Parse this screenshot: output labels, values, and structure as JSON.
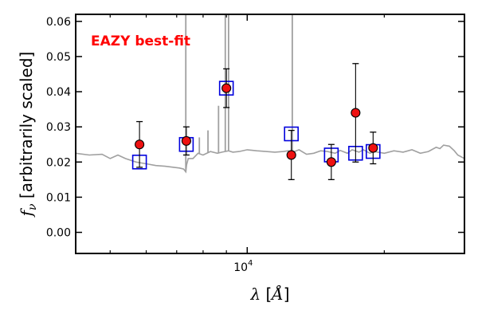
{
  "chart_data": {
    "type": "scatter",
    "xscale": "log",
    "xlim": [
      4200,
      30000
    ],
    "ylim": [
      -0.006,
      0.062
    ],
    "grid": false,
    "legend": "none",
    "annotation": "EAZY best-fit",
    "ylabel_parts": {
      "symbol": "f",
      "sub": "ν",
      "text": " [arbitrarily scaled]"
    },
    "xlabel_parts": {
      "symbol": "λ",
      "open": " [",
      "unit": "Å",
      "close": "]"
    },
    "yticks": [
      {
        "value": 0.0,
        "label": "0.00"
      },
      {
        "value": 0.01,
        "label": "0.01"
      },
      {
        "value": 0.02,
        "label": "0.02"
      },
      {
        "value": 0.03,
        "label": "0.03"
      },
      {
        "value": 0.04,
        "label": "0.04"
      },
      {
        "value": 0.05,
        "label": "0.05"
      },
      {
        "value": 0.06,
        "label": "0.06"
      }
    ],
    "xtick_major": {
      "value": 10000,
      "base": "10",
      "exp": "4"
    },
    "xtick_minor": [
      5000,
      6000,
      7000,
      8000,
      9000,
      20000,
      30000
    ],
    "observed": [
      {
        "x": 5800,
        "y": 0.025,
        "yerr_low": 0.0065,
        "yerr_high": 0.0065
      },
      {
        "x": 7350,
        "y": 0.026,
        "yerr_low": 0.004,
        "yerr_high": 0.004
      },
      {
        "x": 9000,
        "y": 0.041,
        "yerr_low": 0.0055,
        "yerr_high": 0.0055
      },
      {
        "x": 12500,
        "y": 0.022,
        "yerr_low": 0.007,
        "yerr_high": 0.007
      },
      {
        "x": 15300,
        "y": 0.02,
        "yerr_low": 0.005,
        "yerr_high": 0.005
      },
      {
        "x": 17300,
        "y": 0.034,
        "yerr_low": 0.014,
        "yerr_high": 0.014
      },
      {
        "x": 18900,
        "y": 0.024,
        "yerr_low": 0.0045,
        "yerr_high": 0.0045
      }
    ],
    "model_photometry": [
      {
        "x": 5800,
        "y": 0.02
      },
      {
        "x": 7350,
        "y": 0.025
      },
      {
        "x": 9000,
        "y": 0.041
      },
      {
        "x": 12500,
        "y": 0.028
      },
      {
        "x": 15300,
        "y": 0.022
      },
      {
        "x": 17300,
        "y": 0.0225
      },
      {
        "x": 18900,
        "y": 0.023
      }
    ],
    "sed": {
      "x": [
        4200,
        4500,
        4800,
        5000,
        5200,
        5400,
        5700,
        6000,
        6300,
        6600,
        6900,
        7100,
        7250,
        7300,
        7330,
        7360,
        7420,
        7600,
        7800,
        8000,
        8300,
        8600,
        8800,
        9100,
        9300,
        9600,
        10000,
        10500,
        11000,
        11500,
        12000,
        12300,
        12600,
        13000,
        13500,
        14000,
        14500,
        15000,
        15600,
        16000,
        16600,
        17000,
        17600,
        18000,
        18600,
        19000,
        20000,
        21000,
        22000,
        23000,
        24000,
        25000,
        26000,
        26500,
        27000,
        27800,
        28500,
        29000,
        30000
      ],
      "y": [
        0.0225,
        0.022,
        0.0222,
        0.021,
        0.022,
        0.021,
        0.02,
        0.0195,
        0.019,
        0.0188,
        0.0185,
        0.0183,
        0.018,
        0.0175,
        0.0172,
        0.0192,
        0.021,
        0.021,
        0.0225,
        0.022,
        0.023,
        0.0225,
        0.0228,
        0.0232,
        0.0228,
        0.023,
        0.0235,
        0.0232,
        0.023,
        0.0228,
        0.023,
        0.0232,
        0.0228,
        0.0235,
        0.0222,
        0.0225,
        0.0232,
        0.023,
        0.0225,
        0.0233,
        0.0225,
        0.0235,
        0.0228,
        0.0235,
        0.0225,
        0.023,
        0.0225,
        0.0232,
        0.0228,
        0.0235,
        0.0225,
        0.023,
        0.0242,
        0.0238,
        0.0248,
        0.0245,
        0.0232,
        0.022,
        0.021
      ]
    },
    "emission_lines": [
      {
        "x": 7330,
        "y": 0.07
      },
      {
        "x": 7850,
        "y": 0.027
      },
      {
        "x": 8200,
        "y": 0.029
      },
      {
        "x": 8650,
        "y": 0.036
      },
      {
        "x": 8950,
        "y": 0.07
      },
      {
        "x": 9100,
        "y": 0.07
      },
      {
        "x": 12560,
        "y": 0.07
      }
    ],
    "colors": {
      "sed": "#a0a0a0",
      "marker_fill": "#ee1111",
      "model_box": "#0000dd",
      "annotation": "#ff0000"
    }
  }
}
